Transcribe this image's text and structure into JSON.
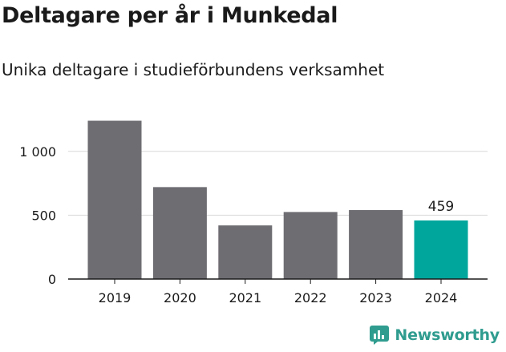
{
  "title": "Deltagare per år i Munkedal",
  "subtitle": "Unika deltagare i studieförbundens verksamhet",
  "brand": {
    "name": "Newsworthy",
    "color": "#2f9c8f"
  },
  "chart_data": {
    "type": "bar",
    "categories": [
      "2019",
      "2020",
      "2021",
      "2022",
      "2023",
      "2024"
    ],
    "values": [
      1240,
      720,
      420,
      525,
      540,
      459
    ],
    "ylim": [
      0,
      1300
    ],
    "yticks": [
      0,
      500,
      1000
    ],
    "ytick_labels": [
      "0",
      "500",
      "1 000"
    ],
    "bar_colors": [
      "#6e6d72",
      "#6e6d72",
      "#6e6d72",
      "#6e6d72",
      "#6e6d72",
      "#00a69c"
    ],
    "data_labels": [
      null,
      null,
      null,
      null,
      null,
      "459"
    ],
    "grid": true
  }
}
